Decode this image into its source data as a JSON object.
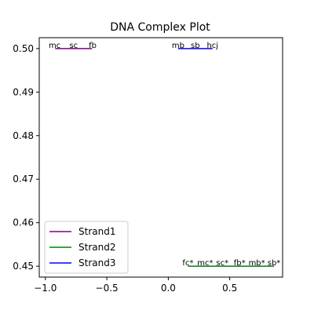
{
  "chart_data": {
    "type": "line",
    "title": "DNA Complex Plot",
    "xlabel": "",
    "ylabel": "",
    "xlim": [
      -1.05,
      0.93
    ],
    "ylim": [
      0.4475,
      0.5025
    ],
    "xticks": [
      -1.0,
      -0.5,
      0.0,
      0.5
    ],
    "xtick_labels": [
      "−1.0",
      "−0.5",
      "0.0",
      "0.5"
    ],
    "yticks": [
      0.45,
      0.46,
      0.47,
      0.48,
      0.49,
      0.5
    ],
    "ytick_labels": [
      "0.45",
      "0.46",
      "0.47",
      "0.48",
      "0.49",
      "0.50"
    ],
    "grid": false,
    "legend_position": "lower-left",
    "series": [
      {
        "name": "Strand1",
        "color": "#800080",
        "x": [
          -0.92,
          -0.62
        ],
        "y": [
          0.5,
          0.5
        ],
        "labels": [
          {
            "text": "mc",
            "x": -0.925,
            "y": 0.5
          },
          {
            "text": "sc",
            "x": -0.77,
            "y": 0.5
          },
          {
            "text": "fb",
            "x": -0.615,
            "y": 0.5
          }
        ]
      },
      {
        "name": "Strand2",
        "color": "#008000",
        "x": [
          0.16,
          0.86
        ],
        "y": [
          0.45,
          0.45
        ],
        "labels": [
          {
            "text": "fc*",
            "x": 0.16,
            "y": 0.45
          },
          {
            "text": "mc*",
            "x": 0.3,
            "y": 0.45
          },
          {
            "text": "sc*",
            "x": 0.44,
            "y": 0.45
          },
          {
            "text": "fb*",
            "x": 0.58,
            "y": 0.45
          },
          {
            "text": "mb*",
            "x": 0.72,
            "y": 0.45
          },
          {
            "text": "sb*",
            "x": 0.86,
            "y": 0.45
          }
        ]
      },
      {
        "name": "Strand3",
        "color": "#0000ff",
        "x": [
          0.08,
          0.36
        ],
        "y": [
          0.5,
          0.5
        ],
        "labels": [
          {
            "text": "mb",
            "x": 0.08,
            "y": 0.5
          },
          {
            "text": "sb",
            "x": 0.22,
            "y": 0.5
          },
          {
            "text": "hcj",
            "x": 0.36,
            "y": 0.5
          }
        ]
      }
    ]
  }
}
